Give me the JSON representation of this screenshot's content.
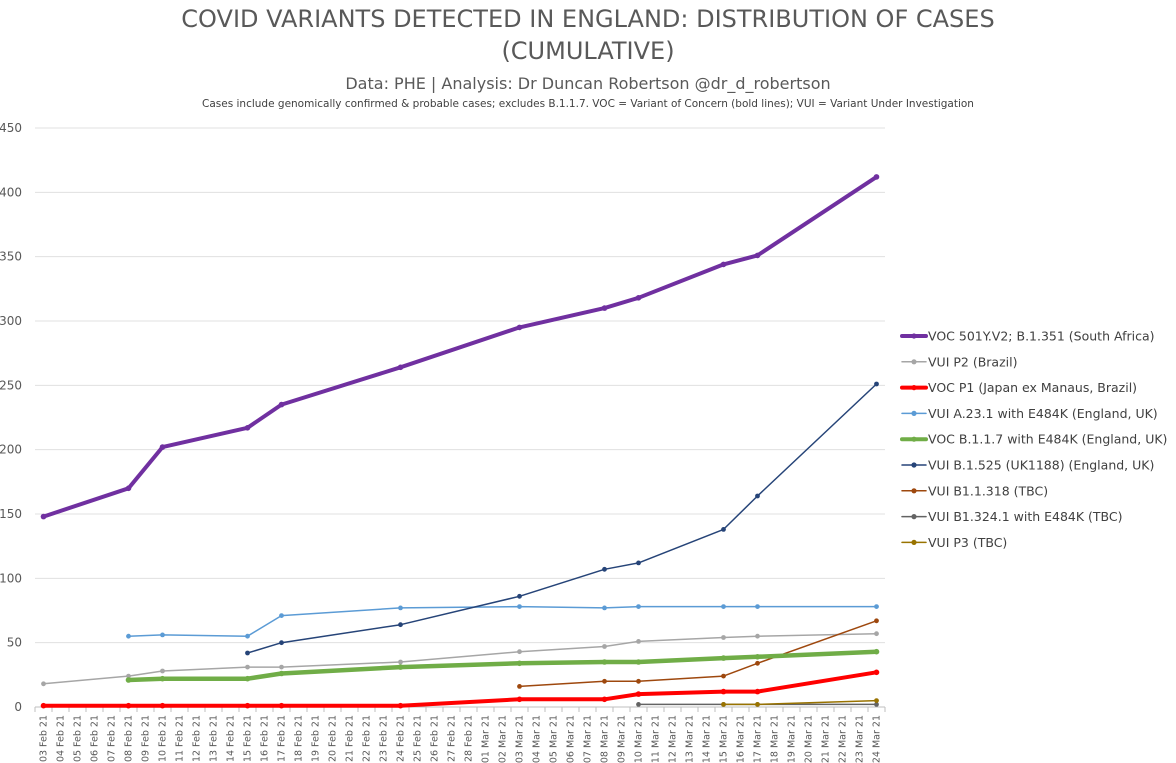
{
  "chart_data": {
    "type": "line",
    "title_line1": "COVID VARIANTS DETECTED IN ENGLAND: DISTRIBUTION OF CASES",
    "title_line2": "(CUMULATIVE)",
    "subtitle": "Data: PHE | Analysis: Dr Duncan Robertson @dr_d_robertson",
    "note": "Cases include genomically confirmed & probable cases; excludes B.1.1.7. VOC = Variant of Concern (bold lines); VUI = Variant Under Investigation",
    "xlabel": "",
    "ylabel": "",
    "ylim": [
      0,
      450
    ],
    "yticks": [
      0,
      50,
      100,
      150,
      200,
      250,
      300,
      350,
      400,
      450
    ],
    "grid": true,
    "legend_position": "right",
    "x_tick_labels": [
      "03 Feb 21",
      "04 Feb 21",
      "05 Feb 21",
      "06 Feb 21",
      "07 Feb 21",
      "08 Feb 21",
      "09 Feb 21",
      "10 Feb 21",
      "11 Feb 21",
      "12 Feb 21",
      "13 Feb 21",
      "14 Feb 21",
      "15 Feb 21",
      "16 Feb 21",
      "17 Feb 21",
      "18 Feb 21",
      "19 Feb 21",
      "20 Feb 21",
      "21 Feb 21",
      "22 Feb 21",
      "23 Feb 21",
      "24 Feb 21",
      "25 Feb 21",
      "26 Feb 21",
      "27 Feb 21",
      "28 Feb 21",
      "01 Mar 21",
      "02 Mar 21",
      "03 Mar 21",
      "04 Mar 21",
      "05 Mar 21",
      "06 Mar 21",
      "07 Mar 21",
      "08 Mar 21",
      "09 Mar 21",
      "10 Mar 21",
      "11 Mar 21",
      "12 Mar 21",
      "13 Mar 21",
      "14 Mar 21",
      "15 Mar 21",
      "16 Mar 21",
      "17 Mar 21",
      "18 Mar 21",
      "19 Mar 21",
      "20 Mar 21",
      "21 Mar 21",
      "22 Mar 21",
      "23 Mar 21",
      "24 Mar 21"
    ],
    "series": [
      {
        "name": "VOC 501Y.V2; B.1.351 (South Africa)",
        "color": "#7030a0",
        "width": 4,
        "bold": true,
        "points": [
          [
            "03 Feb 21",
            148
          ],
          [
            "08 Feb 21",
            170
          ],
          [
            "10 Feb 21",
            202
          ],
          [
            "15 Feb 21",
            217
          ],
          [
            "17 Feb 21",
            235
          ],
          [
            "24 Feb 21",
            264
          ],
          [
            "03 Mar 21",
            295
          ],
          [
            "08 Mar 21",
            310
          ],
          [
            "10 Mar 21",
            318
          ],
          [
            "15 Mar 21",
            344
          ],
          [
            "17 Mar 21",
            351
          ],
          [
            "24 Mar 21",
            412
          ]
        ]
      },
      {
        "name": "VUI P2 (Brazil)",
        "color": "#a6a6a6",
        "width": 1.5,
        "bold": false,
        "points": [
          [
            "03 Feb 21",
            18
          ],
          [
            "08 Feb 21",
            24
          ],
          [
            "10 Feb 21",
            28
          ],
          [
            "15 Feb 21",
            31
          ],
          [
            "17 Feb 21",
            31
          ],
          [
            "24 Feb 21",
            35
          ],
          [
            "03 Mar 21",
            43
          ],
          [
            "08 Mar 21",
            47
          ],
          [
            "10 Mar 21",
            51
          ],
          [
            "15 Mar 21",
            54
          ],
          [
            "17 Mar 21",
            55
          ],
          [
            "24 Mar 21",
            57
          ]
        ]
      },
      {
        "name": "VOC P1 (Japan ex Manaus, Brazil)",
        "color": "#ff0000",
        "width": 4,
        "bold": true,
        "points": [
          [
            "03 Feb 21",
            1
          ],
          [
            "08 Feb 21",
            1
          ],
          [
            "10 Feb 21",
            1
          ],
          [
            "15 Feb 21",
            1
          ],
          [
            "17 Feb 21",
            1
          ],
          [
            "24 Feb 21",
            1
          ],
          [
            "03 Mar 21",
            6
          ],
          [
            "08 Mar 21",
            6
          ],
          [
            "10 Mar 21",
            10
          ],
          [
            "15 Mar 21",
            12
          ],
          [
            "17 Mar 21",
            12
          ],
          [
            "24 Mar 21",
            27
          ]
        ]
      },
      {
        "name": "VUI A.23.1 with E484K (England, UK)",
        "color": "#5b9bd5",
        "width": 1.5,
        "bold": false,
        "points": [
          [
            "08 Feb 21",
            55
          ],
          [
            "10 Feb 21",
            56
          ],
          [
            "15 Feb 21",
            55
          ],
          [
            "17 Feb 21",
            71
          ],
          [
            "24 Feb 21",
            77
          ],
          [
            "03 Mar 21",
            78
          ],
          [
            "08 Mar 21",
            77
          ],
          [
            "10 Mar 21",
            78
          ],
          [
            "15 Mar 21",
            78
          ],
          [
            "17 Mar 21",
            78
          ],
          [
            "24 Mar 21",
            78
          ]
        ]
      },
      {
        "name": "VOC B.1.1.7 with E484K (England, UK)",
        "color": "#70ad47",
        "width": 4.5,
        "bold": true,
        "points": [
          [
            "08 Feb 21",
            21
          ],
          [
            "10 Feb 21",
            22
          ],
          [
            "15 Feb 21",
            22
          ],
          [
            "17 Feb 21",
            26
          ],
          [
            "24 Feb 21",
            31
          ],
          [
            "03 Mar 21",
            34
          ],
          [
            "08 Mar 21",
            35
          ],
          [
            "10 Mar 21",
            35
          ],
          [
            "15 Mar 21",
            38
          ],
          [
            "17 Mar 21",
            39
          ],
          [
            "24 Mar 21",
            43
          ]
        ]
      },
      {
        "name": "VUI B.1.525 (UK1188) (England, UK)",
        "color": "#264478",
        "width": 1.5,
        "bold": false,
        "points": [
          [
            "15 Feb 21",
            42
          ],
          [
            "17 Feb 21",
            50
          ],
          [
            "24 Feb 21",
            64
          ],
          [
            "03 Mar 21",
            86
          ],
          [
            "08 Mar 21",
            107
          ],
          [
            "10 Mar 21",
            112
          ],
          [
            "15 Mar 21",
            138
          ],
          [
            "17 Mar 21",
            164
          ],
          [
            "24 Mar 21",
            251
          ]
        ]
      },
      {
        "name": "VUI B1.1.318 (TBC)",
        "color": "#9e480e",
        "width": 1.5,
        "bold": false,
        "points": [
          [
            "03 Mar 21",
            16
          ],
          [
            "08 Mar 21",
            20
          ],
          [
            "10 Mar 21",
            20
          ],
          [
            "15 Mar 21",
            24
          ],
          [
            "17 Mar 21",
            34
          ],
          [
            "24 Mar 21",
            67
          ]
        ]
      },
      {
        "name": "VUI B1.324.1 with E484K (TBC)",
        "color": "#636363",
        "width": 1.5,
        "bold": false,
        "points": [
          [
            "10 Mar 21",
            2
          ],
          [
            "15 Mar 21",
            2
          ],
          [
            "17 Mar 21",
            2
          ],
          [
            "24 Mar 21",
            2
          ]
        ]
      },
      {
        "name": "VUI P3 (TBC)",
        "color": "#997300",
        "width": 1.5,
        "bold": false,
        "points": [
          [
            "15 Mar 21",
            2
          ],
          [
            "17 Mar 21",
            2
          ],
          [
            "24 Mar 21",
            5
          ]
        ]
      }
    ]
  }
}
